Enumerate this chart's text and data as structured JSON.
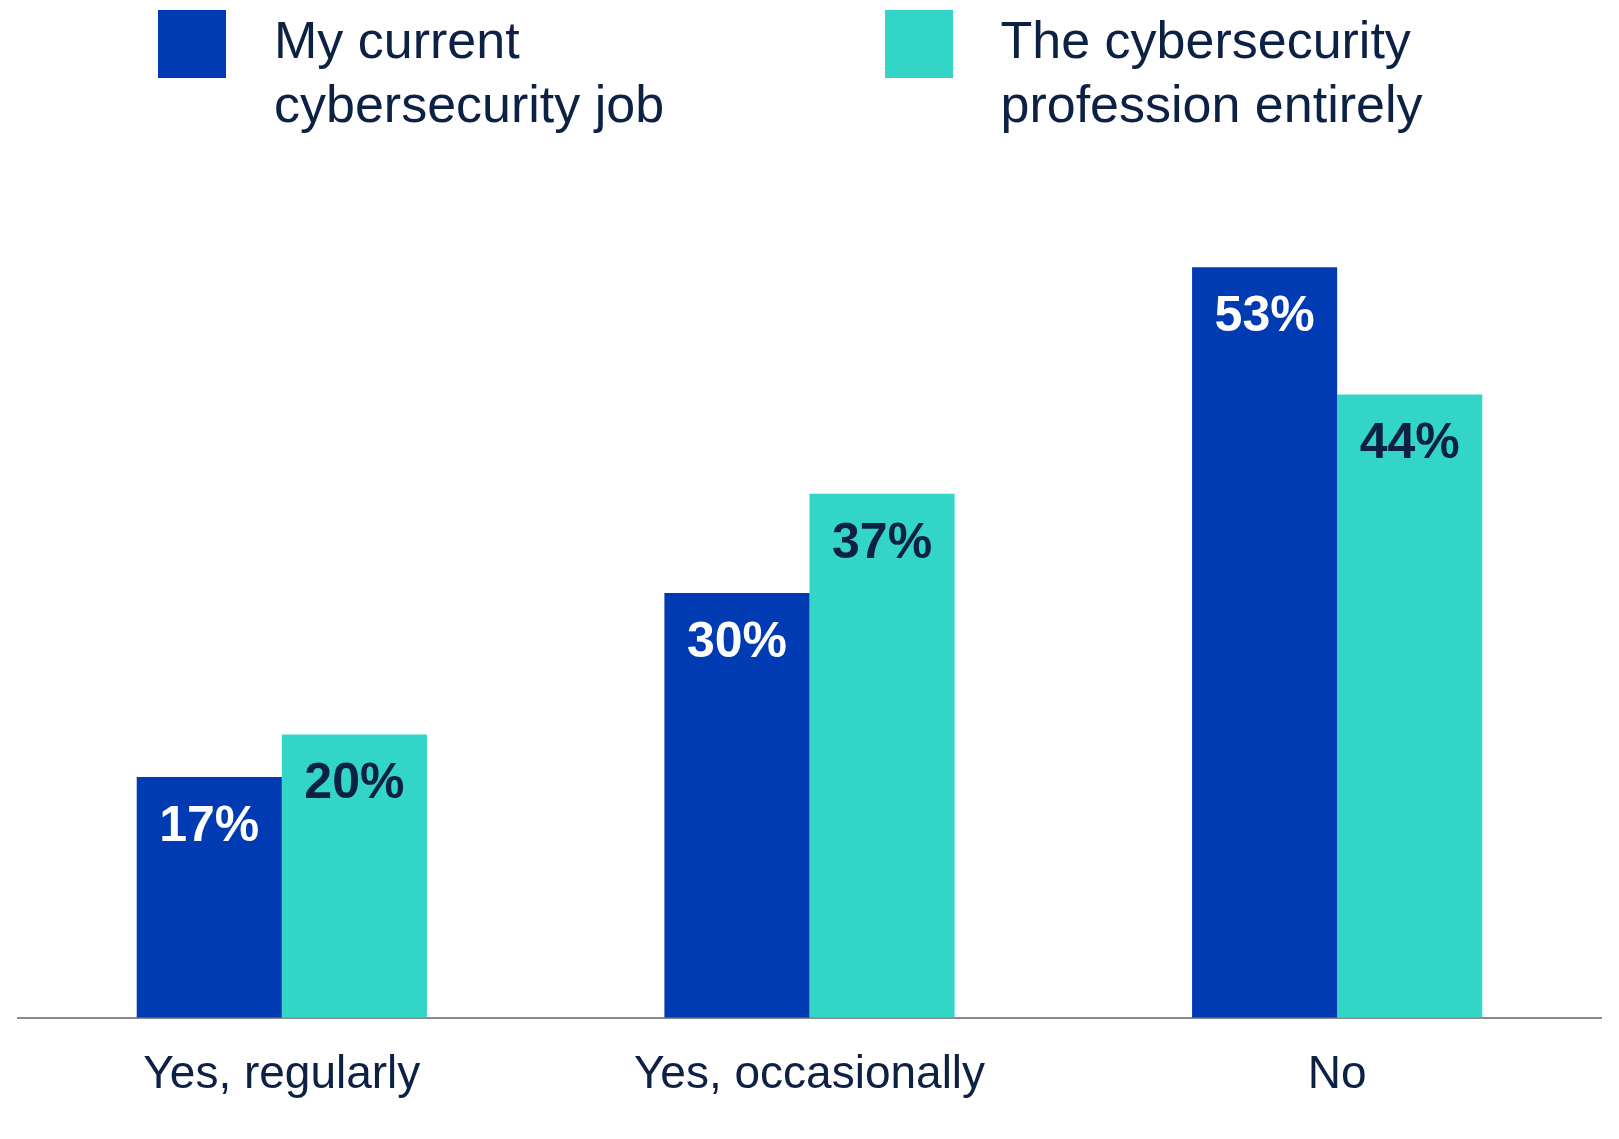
{
  "chart_data": {
    "type": "bar",
    "categories": [
      "Yes, regularly",
      "Yes, occasionally",
      "No"
    ],
    "series": [
      {
        "name": "My current cybersecurity job",
        "color": "#003bb3",
        "values": [
          17,
          30,
          53
        ],
        "value_labels": [
          "17%",
          "30%",
          "53%"
        ]
      },
      {
        "name": "The cybersecurity profession entirely",
        "color": "#33d6c6",
        "values": [
          20,
          37,
          44
        ],
        "value_labels": [
          "20%",
          "37%",
          "44%"
        ]
      }
    ],
    "legend": "top",
    "tick_labels": "x",
    "grid": false
  }
}
